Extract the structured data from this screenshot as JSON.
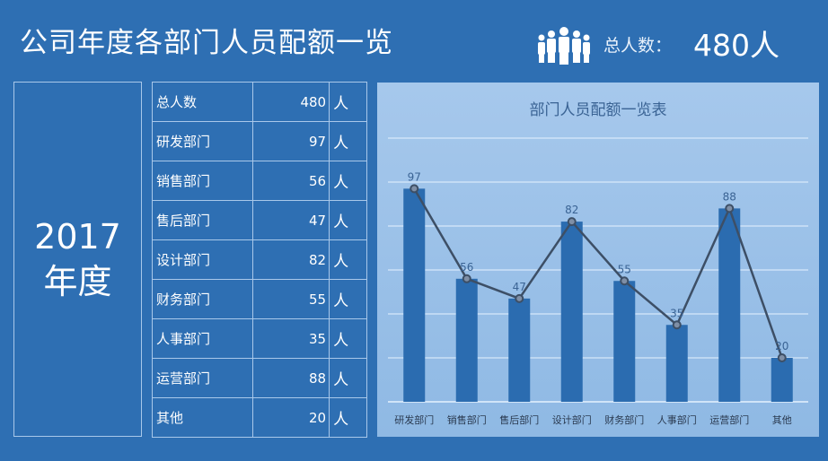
{
  "header": {
    "title": "公司年度各部门人员配额一览",
    "people_icon": "people-group-icon",
    "total_label": "总人数：",
    "total_value": "480人"
  },
  "year": {
    "line1": "2017",
    "line2": "年度"
  },
  "table": {
    "rows": [
      {
        "name": "总人数",
        "value": "480",
        "unit": "人"
      },
      {
        "name": "研发部门",
        "value": "97",
        "unit": "人"
      },
      {
        "name": "销售部门",
        "value": "56",
        "unit": "人"
      },
      {
        "name": "售后部门",
        "value": "47",
        "unit": "人"
      },
      {
        "name": "设计部门",
        "value": "82",
        "unit": "人"
      },
      {
        "name": "财务部门",
        "value": "55",
        "unit": "人"
      },
      {
        "name": "人事部门",
        "value": "35",
        "unit": "人"
      },
      {
        "name": "运营部门",
        "value": "88",
        "unit": "人"
      },
      {
        "name": "其他",
        "value": "20",
        "unit": "人"
      }
    ]
  },
  "chart_data": {
    "type": "bar+line",
    "title": "部门人员配额一览表",
    "categories": [
      "研发部门",
      "销售部门",
      "售后部门",
      "设计部门",
      "财务部门",
      "人事部门",
      "运营部门",
      "其他"
    ],
    "values": [
      97,
      56,
      47,
      82,
      55,
      35,
      88,
      20
    ],
    "ylim": [
      0,
      120
    ],
    "ystep": 20,
    "grid": true,
    "colors": {
      "bar": "#2b6cb0",
      "line": "#3d4f66",
      "grid": "#e6f2ff",
      "label": "#3a6394"
    }
  }
}
